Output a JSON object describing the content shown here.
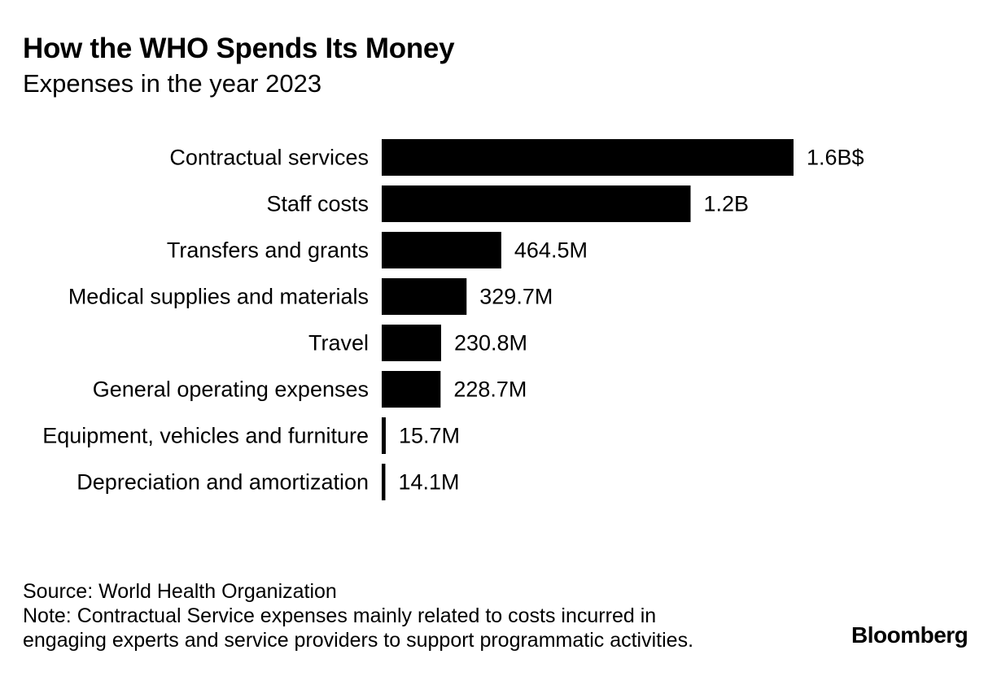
{
  "chart_data": {
    "type": "bar",
    "orientation": "horizontal",
    "title": "How the WHO Spends Its Money",
    "subtitle": "Expenses in the year 2023",
    "unit": "USD",
    "categories": [
      "Contractual services",
      "Staff costs",
      "Transfers and grants",
      "Medical supplies and materials",
      "Travel",
      "General operating expenses",
      "Equipment, vehicles and furniture",
      "Depreciation and amortization"
    ],
    "values": [
      1600000000,
      1200000000,
      464500000,
      329700000,
      230800000,
      228700000,
      15700000,
      14100000
    ],
    "labels": [
      "1.6B$",
      "1.2B",
      "464.5M",
      "329.7M",
      "230.8M",
      "228.7M",
      "15.7M",
      "14.1M"
    ],
    "xlim": [
      0,
      1600000000
    ],
    "bar_color": "#000000",
    "legend": "none",
    "grid": false
  },
  "footer": {
    "source": "Source: World Health Organization",
    "note_line1": "Note: Contractual Service expenses mainly related to costs incurred in",
    "note_line2": "engaging experts and service providers to support programmatic activities."
  },
  "brand": "Bloomberg"
}
